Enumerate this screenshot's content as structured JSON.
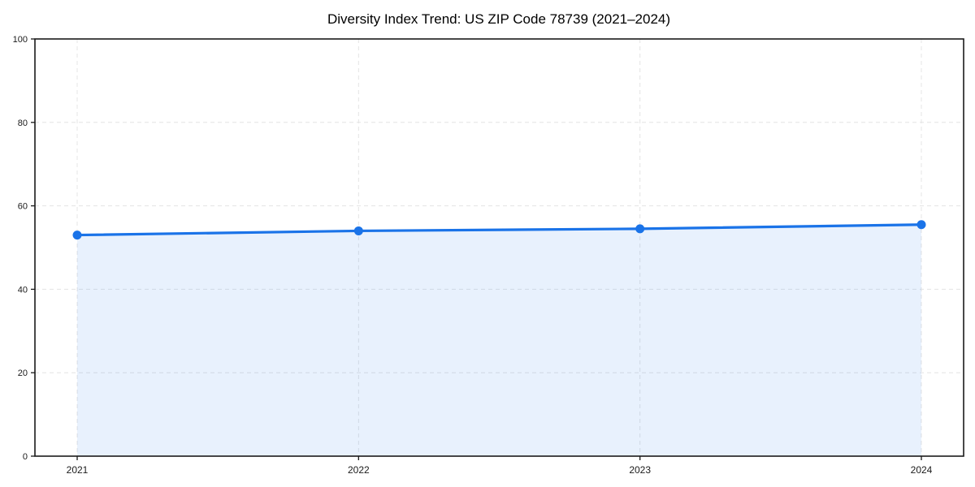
{
  "chart_data": {
    "type": "area",
    "title": "Diversity Index Trend: US ZIP Code 78739 (2021–2024)",
    "categories": [
      "2021",
      "2022",
      "2023",
      "2024"
    ],
    "series": [
      {
        "name": "Diversity Index",
        "values": [
          53,
          54,
          54.5,
          55.5
        ]
      }
    ],
    "xlabel": "",
    "ylabel": "",
    "ylim": [
      0,
      100
    ],
    "yticks": [
      0,
      20,
      40,
      60,
      80,
      100
    ],
    "grid": true,
    "grid_style": "dashed",
    "legend_position": "none",
    "marker": "circle",
    "colors": {
      "line": "#1a73e8",
      "marker": "#1a73e8",
      "fill": "#1a73e8",
      "fill_opacity": 0.1,
      "grid": "#e4e4e4",
      "axis": "#1a1a1a",
      "tick_text": "#1a1a1a"
    }
  }
}
